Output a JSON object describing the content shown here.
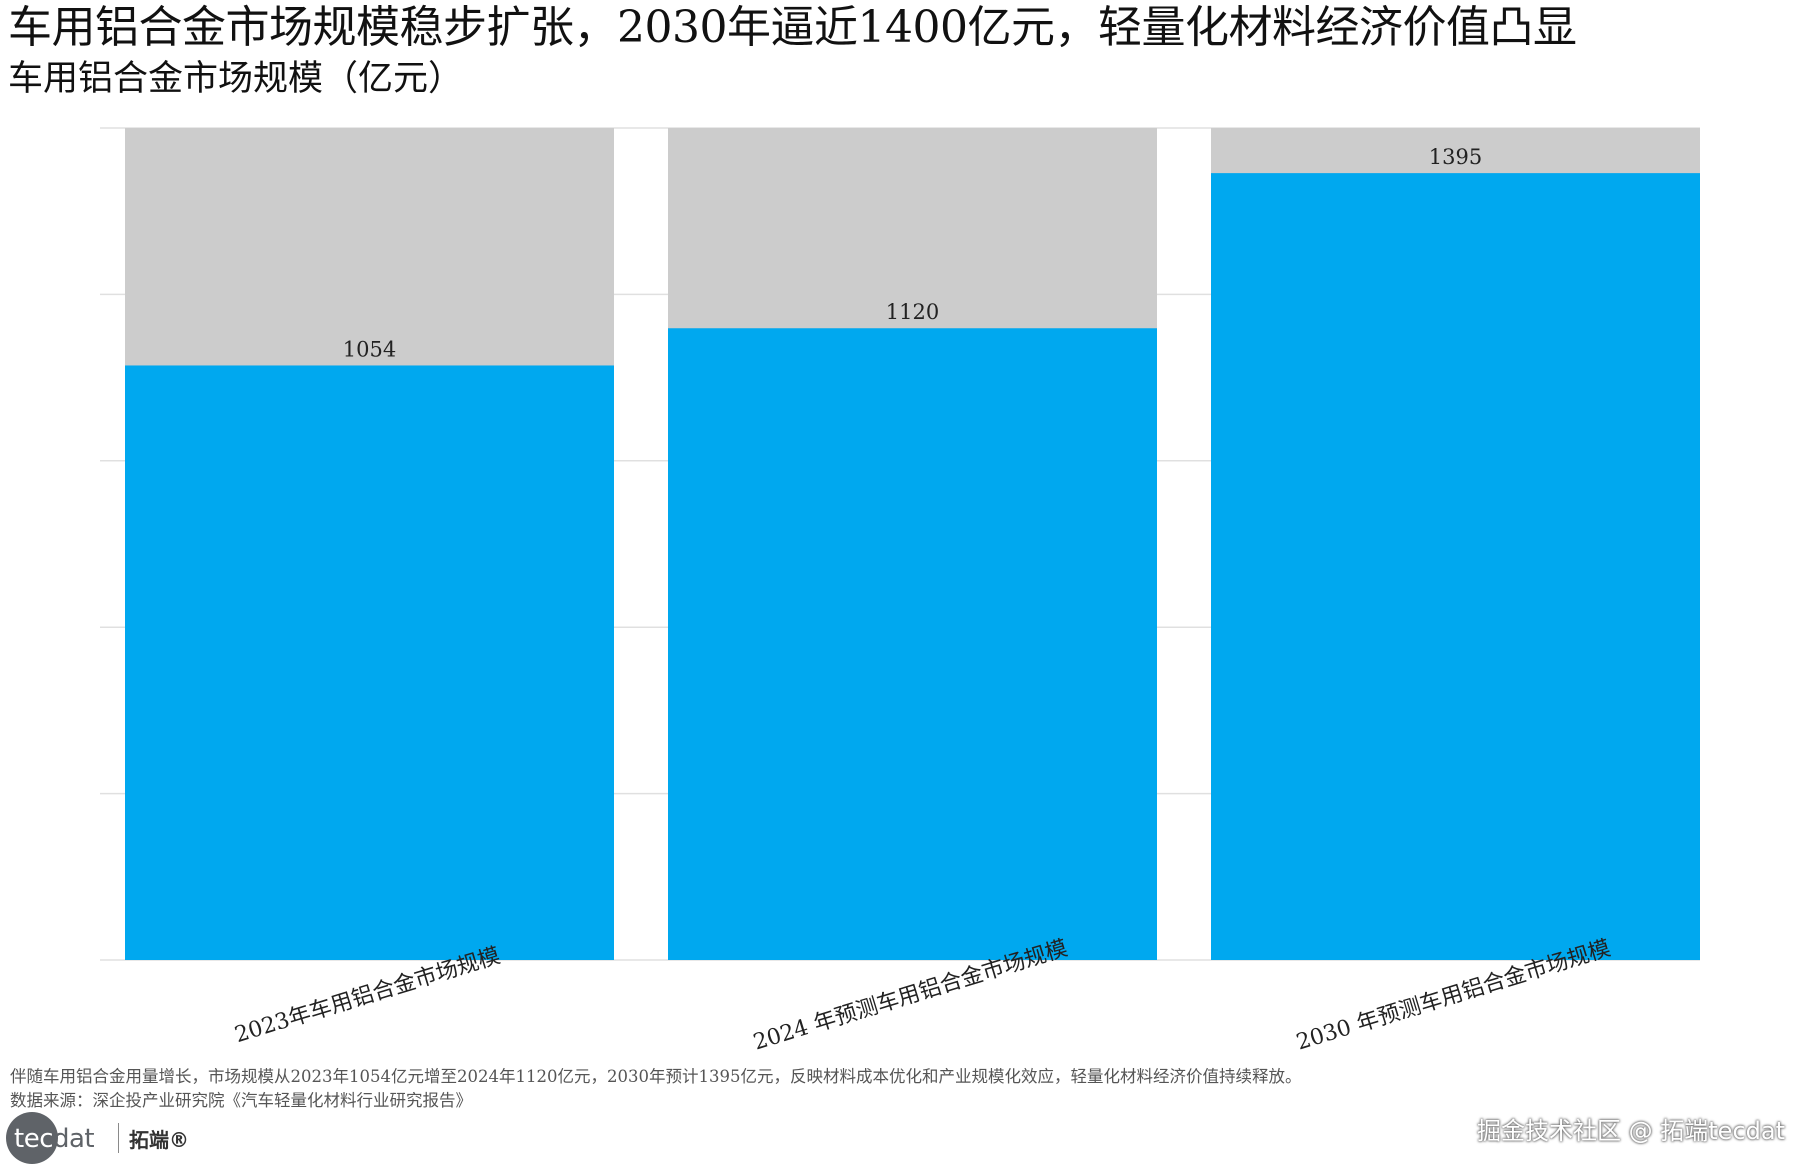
{
  "title": "车用铝合金市场规模稳步扩张，2030年逼近1400亿元，轻量化材料经济价值凸显",
  "subtitle": "车用铝合金市场规模（亿元）",
  "caption": "伴随车用铝合金用量增长，市场规模从2023年1054亿元增至2024年1120亿元，2030年预计1395亿元，反映材料成本优化和产业规模化效应，轻量化材料经济价值持续释放。",
  "source": "数据来源：深企投产业研究院《汽车轻量化材料行业研究报告》",
  "logo": {
    "mark_text": "tecdat",
    "brand_text": "拓端®"
  },
  "watermark": "掘金技术社区 @ 拓端tecdat",
  "colors": {
    "bar": "#00a8ef",
    "background_bar": "#cccccc",
    "grid": "#e0e0e0"
  },
  "chart_data": {
    "type": "bar",
    "categories": [
      "2023年车用铝合金市场规模",
      "2024 年预测车用铝合金市场规模",
      "2030 年预测车用铝合金市场规模"
    ],
    "series": [
      {
        "values": [
          1054,
          1120,
          1395
        ]
      }
    ],
    "ylim": [
      0,
      1475
    ],
    "xlabel": "",
    "ylabel": "",
    "grid": true,
    "data_labels": true,
    "background_bars": true,
    "x_tick_rotation": -17
  }
}
